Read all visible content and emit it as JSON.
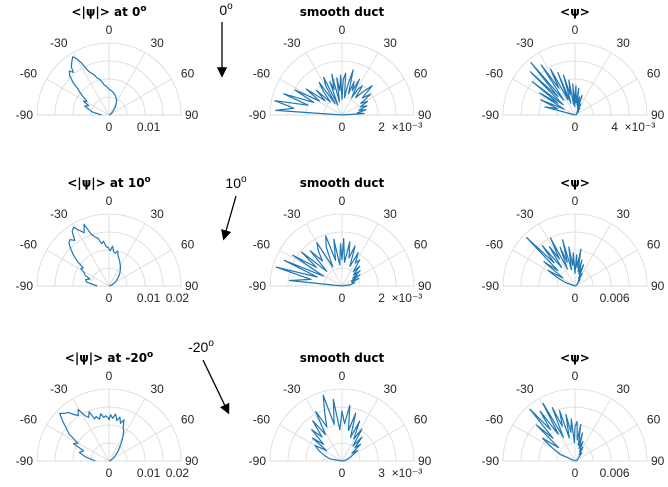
{
  "annotations": [
    {
      "row": 0,
      "text": "0",
      "sup": "o"
    },
    {
      "row": 1,
      "text": "10",
      "sup": "o"
    },
    {
      "row": 2,
      "text": "-20",
      "sup": "o"
    }
  ],
  "chart_data": [
    {
      "type": "polar-line",
      "row": 0,
      "col": 0,
      "title": "<|ψ|> at  0",
      "title_sup": "o",
      "theta_ticks": [
        "-90",
        "-60",
        "-30",
        "0",
        "30",
        "60",
        "90"
      ],
      "r_ticks": [
        "0",
        "0.01"
      ],
      "r_exponent": "",
      "series": [
        {
          "theta": [
            -90,
            -80,
            -75,
            -70,
            -65,
            -62,
            -58,
            -55,
            -52,
            -50,
            -48,
            -45,
            -42,
            -40,
            -38,
            -35,
            -32,
            -30,
            -28,
            -25,
            -22,
            -20,
            -18,
            -15,
            -12,
            -10,
            -8,
            -5,
            -3,
            0,
            2,
            5,
            8,
            10,
            12,
            15,
            18,
            20,
            22,
            25,
            28,
            30,
            32,
            35,
            38,
            40,
            42,
            45,
            50,
            55,
            60,
            65,
            70,
            75,
            80,
            85,
            90
          ],
          "r": [
            0.002,
            0.0045,
            0.0055,
            0.007,
            0.006,
            0.0078,
            0.007,
            0.0085,
            0.01,
            0.011,
            0.013,
            0.015,
            0.016,
            0.015,
            0.0165,
            0.0175,
            0.0185,
            0.0175,
            0.016,
            0.013,
            0.012,
            0.0115,
            0.0105,
            0.01,
            0.0092,
            0.0085,
            0.008,
            0.0078,
            0.0074,
            0.007,
            0.0068,
            0.0066,
            0.0064,
            0.0062,
            0.006,
            0.0058,
            0.0055,
            0.0053,
            0.005,
            0.0047,
            0.0044,
            0.004,
            0.0036,
            0.0032,
            0.0028,
            0.0024,
            0.002,
            0.0016,
            0.0012,
            0.0009,
            0.0006,
            0.0004,
            0.0003,
            0.0002,
            0.0001,
            0.0001,
            0.0
          ]
        }
      ]
    },
    {
      "type": "polar-line",
      "row": 0,
      "col": 1,
      "title": "smooth duct",
      "theta_ticks": [
        "-90",
        "-60",
        "-30",
        "0",
        "30",
        "60",
        "90"
      ],
      "r_ticks": [
        "0",
        "2"
      ],
      "r_exponent": "×10⁻³",
      "series": [
        {
          "theta": [
            -90,
            -86,
            -82,
            -78,
            -74,
            -70,
            -66,
            -62,
            -58,
            -54,
            -50,
            -46,
            -42,
            -38,
            -35,
            -32,
            -29,
            -26,
            -23,
            -20,
            -17,
            -14,
            -11,
            -8,
            -5,
            -2,
            0,
            2,
            5,
            8,
            11,
            14,
            17,
            20,
            23,
            26,
            29,
            32,
            35,
            38,
            42,
            46,
            50,
            54,
            58,
            62,
            66,
            70,
            74,
            78,
            82,
            86,
            90
          ],
          "r": [
            0.0,
            0.003,
            0.0022,
            0.0031,
            0.0016,
            0.0028,
            0.0014,
            0.0024,
            0.0012,
            0.002,
            0.001,
            0.0016,
            0.0008,
            0.0014,
            0.0018,
            0.0006,
            0.0015,
            0.0019,
            0.0005,
            0.0016,
            0.0012,
            0.0019,
            0.0006,
            0.0017,
            0.0011,
            0.0018,
            0.0007,
            0.0016,
            0.0019,
            0.0008,
            0.0014,
            0.0021,
            0.001,
            0.0016,
            0.0012,
            0.0018,
            0.0009,
            0.0014,
            0.0016,
            0.001,
            0.0014,
            0.0019,
            0.0012,
            0.0016,
            0.001,
            0.0013,
            0.0009,
            0.0012,
            0.0008,
            0.0011,
            0.0007,
            0.001,
            0.0
          ]
        }
      ]
    },
    {
      "type": "polar-line",
      "row": 0,
      "col": 2,
      "title": "<ψ>",
      "theta_ticks": [
        "-90",
        "-60",
        "-30",
        "0",
        "30",
        "60",
        "90"
      ],
      "r_ticks": [
        "0",
        "4"
      ],
      "r_exponent": "×10⁻³",
      "series": [
        {
          "theta": [
            -90,
            -75,
            -70,
            -66,
            -62,
            -58,
            -55,
            -52,
            -49,
            -46,
            -43,
            -40,
            -37,
            -34,
            -31,
            -28,
            -25,
            -22,
            -19,
            -16,
            -13,
            -10,
            -7,
            -4,
            -1,
            0,
            2,
            5,
            8,
            11,
            14,
            17,
            20,
            24,
            28,
            32,
            36,
            40,
            45,
            50,
            60,
            70,
            80,
            90
          ],
          "r": [
            0.0,
            0.003,
            0.0018,
            0.0036,
            0.0012,
            0.004,
            0.002,
            0.0052,
            0.0015,
            0.006,
            0.0024,
            0.0066,
            0.0018,
            0.0058,
            0.003,
            0.005,
            0.0016,
            0.0044,
            0.0012,
            0.004,
            0.002,
            0.0034,
            0.001,
            0.003,
            0.0008,
            0.002,
            0.0028,
            0.0012,
            0.0026,
            0.001,
            0.0018,
            0.0008,
            0.002,
            0.0006,
            0.0012,
            0.0004,
            0.0008,
            0.0003,
            0.0005,
            0.0002,
            0.0002,
            0.0001,
            0.0001,
            0.0
          ]
        }
      ]
    },
    {
      "type": "polar-line",
      "row": 1,
      "col": 0,
      "title": "<|ψ|> at  10",
      "title_sup": "o",
      "theta_ticks": [
        "-90",
        "-60",
        "-30",
        "0",
        "30",
        "60",
        "90"
      ],
      "r_ticks": [
        "0",
        "0.01",
        "0.02"
      ],
      "r_exponent": "",
      "series": [
        {
          "theta": [
            -90,
            -80,
            -75,
            -70,
            -66,
            -62,
            -58,
            -55,
            -52,
            -49,
            -46,
            -43,
            -40,
            -37,
            -34,
            -31,
            -28,
            -25,
            -22,
            -19,
            -16,
            -13,
            -10,
            -7,
            -4,
            -1,
            0,
            2,
            5,
            8,
            11,
            14,
            17,
            20,
            23,
            26,
            30,
            34,
            38,
            42,
            46,
            50,
            55,
            60,
            65,
            70,
            75,
            80,
            85,
            90
          ],
          "r": [
            0.003,
            0.0058,
            0.0062,
            0.0052,
            0.0066,
            0.0072,
            0.0085,
            0.008,
            0.0102,
            0.012,
            0.0135,
            0.015,
            0.0155,
            0.0145,
            0.0168,
            0.0175,
            0.016,
            0.015,
            0.017,
            0.014,
            0.013,
            0.0125,
            0.011,
            0.0115,
            0.01,
            0.0098,
            0.0094,
            0.009,
            0.0102,
            0.0088,
            0.0085,
            0.0092,
            0.008,
            0.0074,
            0.007,
            0.0064,
            0.0058,
            0.0052,
            0.0046,
            0.004,
            0.0034,
            0.0028,
            0.0022,
            0.0016,
            0.0012,
            0.0008,
            0.0005,
            0.0003,
            0.0002,
            0.0
          ]
        }
      ]
    },
    {
      "type": "polar-line",
      "row": 1,
      "col": 1,
      "title": "smooth duct",
      "theta_ticks": [
        "-90",
        "-60",
        "-30",
        "0",
        "30",
        "60",
        "90"
      ],
      "r_ticks": [
        "0",
        "2"
      ],
      "r_exponent": "×10⁻³",
      "series": [
        {
          "theta": [
            -90,
            -84,
            -78,
            -74,
            -70,
            -66,
            -62,
            -58,
            -54,
            -50,
            -46,
            -42,
            -38,
            -34,
            -30,
            -26,
            -22,
            -18,
            -14,
            -10,
            -6,
            -2,
            0,
            2,
            6,
            10,
            14,
            18,
            22,
            26,
            30,
            34,
            38,
            42,
            46,
            50,
            54,
            58,
            62,
            66,
            70,
            76,
            82,
            90
          ],
          "r": [
            0.0,
            0.002,
            0.0012,
            0.0026,
            0.001,
            0.0024,
            0.0008,
            0.0022,
            0.0012,
            0.002,
            0.0008,
            0.0018,
            0.0012,
            0.0016,
            0.0019,
            0.0008,
            0.0016,
            0.002,
            0.001,
            0.0018,
            0.0008,
            0.0016,
            0.001,
            0.0018,
            0.0009,
            0.0017,
            0.0011,
            0.0016,
            0.0008,
            0.0014,
            0.001,
            0.0012,
            0.0007,
            0.001,
            0.0006,
            0.0009,
            0.0005,
            0.0008,
            0.0004,
            0.0007,
            0.0004,
            0.0005,
            0.0003,
            0.0
          ]
        }
      ]
    },
    {
      "type": "polar-line",
      "row": 1,
      "col": 2,
      "title": "<ψ>",
      "theta_ticks": [
        "-90",
        "-60",
        "-30",
        "0",
        "30",
        "60",
        "90"
      ],
      "r_ticks": [
        "0",
        "0.006"
      ],
      "r_exponent": "",
      "series": [
        {
          "theta": [
            -90,
            -70,
            -65,
            -60,
            -56,
            -52,
            -48,
            -45,
            -42,
            -39,
            -36,
            -33,
            -30,
            -27,
            -24,
            -21,
            -18,
            -15,
            -12,
            -9,
            -6,
            -3,
            0,
            3,
            6,
            9,
            12,
            15,
            18,
            22,
            26,
            30,
            34,
            38,
            44,
            50,
            60,
            70,
            80,
            90
          ],
          "r": [
            0.0,
            0.001,
            0.0018,
            0.003,
            0.0014,
            0.0038,
            0.0022,
            0.0066,
            0.003,
            0.005,
            0.0022,
            0.0045,
            0.003,
            0.0052,
            0.0018,
            0.004,
            0.0024,
            0.0046,
            0.0016,
            0.0038,
            0.002,
            0.0032,
            0.0012,
            0.003,
            0.0018,
            0.0036,
            0.0014,
            0.0026,
            0.0012,
            0.0022,
            0.0008,
            0.0014,
            0.0006,
            0.0008,
            0.0004,
            0.0003,
            0.0002,
            0.0001,
            0.0001,
            0.0
          ]
        }
      ]
    },
    {
      "type": "polar-line",
      "row": 2,
      "col": 0,
      "title": "<|ψ|> at  -20",
      "title_sup": "o",
      "theta_ticks": [
        "-90",
        "-60",
        "-30",
        "0",
        "30",
        "60",
        "90"
      ],
      "r_ticks": [
        "0",
        "0.01",
        "0.02"
      ],
      "r_exponent": "",
      "series": [
        {
          "theta": [
            -90,
            -80,
            -74,
            -68,
            -64,
            -60,
            -56,
            -52,
            -49,
            -46,
            -43,
            -40,
            -37,
            -34,
            -31,
            -28,
            -25,
            -22,
            -19,
            -16,
            -13,
            -10,
            -7,
            -4,
            -1,
            0,
            2,
            5,
            8,
            11,
            14,
            17,
            20,
            23,
            26,
            29,
            32,
            35,
            38,
            42,
            46,
            50,
            55,
            60,
            66,
            72,
            80,
            90
          ],
          "r": [
            0.004,
            0.007,
            0.009,
            0.008,
            0.0115,
            0.0105,
            0.014,
            0.016,
            0.018,
            0.02,
            0.019,
            0.0185,
            0.017,
            0.016,
            0.0175,
            0.015,
            0.014,
            0.0155,
            0.013,
            0.0135,
            0.0125,
            0.014,
            0.0128,
            0.0132,
            0.0126,
            0.012,
            0.0135,
            0.0125,
            0.0138,
            0.012,
            0.0132,
            0.0115,
            0.0128,
            0.0105,
            0.0098,
            0.0085,
            0.0072,
            0.006,
            0.005,
            0.004,
            0.003,
            0.0022,
            0.0016,
            0.001,
            0.0006,
            0.0003,
            0.0001,
            0.0
          ]
        }
      ]
    },
    {
      "type": "polar-line",
      "row": 2,
      "col": 1,
      "title": "smooth duct",
      "theta_ticks": [
        "-90",
        "-60",
        "-30",
        "0",
        "30",
        "60",
        "90"
      ],
      "r_ticks": [
        "0",
        "3"
      ],
      "r_exponent": "×10⁻³",
      "series": [
        {
          "theta": [
            -90,
            -80,
            -72,
            -66,
            -60,
            -56,
            -52,
            -48,
            -44,
            -40,
            -36,
            -32,
            -28,
            -24,
            -20,
            -16,
            -12,
            -8,
            -4,
            0,
            4,
            8,
            12,
            16,
            20,
            24,
            28,
            32,
            36,
            40,
            44,
            48,
            52,
            56,
            60,
            66,
            72,
            80,
            90
          ],
          "r": [
            0.0,
            0.0004,
            0.0006,
            0.0008,
            0.001,
            0.0006,
            0.0012,
            0.0008,
            0.0014,
            0.001,
            0.0016,
            0.001,
            0.0018,
            0.0012,
            0.0016,
            0.0022,
            0.0012,
            0.002,
            0.001,
            0.0016,
            0.0012,
            0.0018,
            0.001,
            0.0016,
            0.0008,
            0.0014,
            0.0008,
            0.0012,
            0.0006,
            0.001,
            0.0006,
            0.0008,
            0.0004,
            0.0006,
            0.0004,
            0.0003,
            0.0002,
            0.0001,
            0.0
          ]
        }
      ]
    },
    {
      "type": "polar-line",
      "row": 2,
      "col": 2,
      "title": "<ψ>",
      "theta_ticks": [
        "-90",
        "-60",
        "-30",
        "0",
        "30",
        "60",
        "90"
      ],
      "r_ticks": [
        "0",
        "0.006"
      ],
      "r_exponent": "",
      "series": [
        {
          "theta": [
            -90,
            -66,
            -60,
            -55,
            -51,
            -47,
            -44,
            -41,
            -38,
            -35,
            -32,
            -29,
            -26,
            -23,
            -20,
            -17,
            -14,
            -11,
            -8,
            -5,
            -2,
            0,
            3,
            6,
            9,
            12,
            15,
            18,
            22,
            26,
            30,
            34,
            40,
            46,
            55,
            65,
            75,
            90
          ],
          "r": [
            0.0,
            0.0012,
            0.002,
            0.003,
            0.0016,
            0.004,
            0.0024,
            0.0052,
            0.003,
            0.0046,
            0.0024,
            0.005,
            0.002,
            0.0044,
            0.0028,
            0.004,
            0.0018,
            0.0036,
            0.0022,
            0.0032,
            0.0014,
            0.0026,
            0.003,
            0.0016,
            0.0028,
            0.0012,
            0.0022,
            0.001,
            0.0016,
            0.0008,
            0.0012,
            0.0006,
            0.0008,
            0.0004,
            0.0003,
            0.0002,
            0.0001,
            0.0
          ]
        }
      ]
    }
  ]
}
